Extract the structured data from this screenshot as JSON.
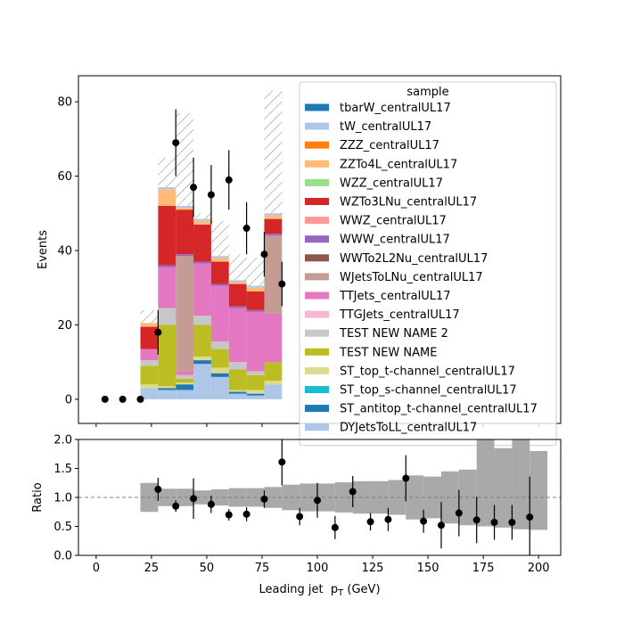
{
  "figure": {
    "colors": {
      "data_points": "#000000",
      "unc_hatch": "#808080",
      "ratio_band": "#a9a9a9",
      "ratio_ref_line": "#808080"
    }
  },
  "chart_data": [
    {
      "type": "bar",
      "stacked": true,
      "xlabel": "Leading jet  p_T (GeV)",
      "ylabel": "Events",
      "xlim": [
        -8,
        210
      ],
      "ylim": [
        -6.5,
        87
      ],
      "yticks": [
        0,
        20,
        40,
        60,
        80
      ],
      "bin_edges": [
        20,
        28,
        36,
        44,
        52,
        60,
        68,
        76,
        84,
        92,
        100,
        108,
        116,
        124,
        132,
        140,
        148,
        156,
        164,
        172,
        180,
        188,
        196,
        204
      ],
      "legend": {
        "title": "sample",
        "placement": "top-right"
      },
      "series": [
        {
          "name": "DYJetsToLL_centralUL17",
          "color": "#aec7e8",
          "values": [
            3.0,
            2.5,
            2.5,
            9.5,
            6.0,
            1.5,
            1.0,
            4.0,
            0,
            0,
            0,
            0,
            0,
            0,
            0,
            0,
            0,
            0,
            0,
            0,
            0,
            0,
            0
          ]
        },
        {
          "name": "ST_antitop_t-channel_centralUL17",
          "color": "#1f77b4",
          "values": [
            0,
            0.5,
            1.5,
            1.0,
            1.0,
            0.5,
            0.5,
            0,
            0,
            0,
            0,
            0,
            0,
            0,
            0,
            0,
            0,
            0,
            0,
            0,
            0,
            0,
            0
          ]
        },
        {
          "name": "ST_top_s-channel_centralUL17",
          "color": "#17becf",
          "values": [
            0,
            0,
            0,
            0,
            0,
            0,
            0,
            0,
            0,
            0,
            0,
            0,
            0,
            0,
            0,
            0,
            0,
            0,
            0,
            0,
            0,
            0,
            0
          ]
        },
        {
          "name": "ST_top_t-channel_centralUL17",
          "color": "#dbdb8d",
          "values": [
            1.0,
            0.5,
            0.5,
            1.0,
            1.5,
            0.5,
            1.0,
            1.0,
            0,
            0,
            0,
            0,
            0,
            0,
            0,
            0,
            0,
            0,
            0,
            0,
            0,
            0,
            0
          ]
        },
        {
          "name": "TEST NEW NAME",
          "color": "#bcbd22",
          "values": [
            5.0,
            16.5,
            1.0,
            8.5,
            5.0,
            5.5,
            4.0,
            5.0,
            0,
            0,
            0,
            0,
            0,
            0,
            0,
            0,
            0,
            0,
            0,
            0,
            0,
            0,
            0
          ]
        },
        {
          "name": "TEST NEW NAME 2",
          "color": "#c7c7c7",
          "values": [
            1.5,
            4.5,
            1.0,
            2.5,
            2.0,
            2.0,
            1.0,
            0,
            0,
            0,
            0,
            0,
            0,
            0,
            0,
            0,
            0,
            0,
            0,
            0,
            0,
            0,
            0
          ]
        },
        {
          "name": "TTGJets_centralUL17",
          "color": "#f7b6d2",
          "values": [
            0,
            0,
            0,
            0,
            0,
            0,
            0,
            0,
            0,
            0,
            0,
            0,
            0,
            0,
            0,
            0,
            0,
            0,
            0,
            0,
            0,
            0,
            0
          ]
        },
        {
          "name": "TTJets_centralUL17",
          "color": "#e377c2",
          "values": [
            3.0,
            11.0,
            1.0,
            14.0,
            15.0,
            14.5,
            16.0,
            13.0,
            0,
            0,
            0,
            0,
            0,
            0,
            0,
            0,
            0,
            0,
            0,
            0,
            0,
            0,
            0
          ]
        },
        {
          "name": "WJetsToLNu_centralUL17",
          "color": "#c49c94",
          "values": [
            0,
            0,
            31.0,
            0,
            0,
            0,
            0,
            21.0,
            0,
            0,
            0,
            0,
            0,
            0,
            0,
            0,
            0,
            0,
            0,
            0,
            0,
            0,
            0
          ]
        },
        {
          "name": "WWTo2L2Nu_centralUL17",
          "color": "#8c564b",
          "values": [
            0,
            0,
            0,
            0,
            0,
            0,
            0,
            0,
            0,
            0,
            0,
            0,
            0,
            0,
            0,
            0,
            0,
            0,
            0,
            0,
            0,
            0,
            0
          ]
        },
        {
          "name": "WWW_centralUL17",
          "color": "#9467bd",
          "values": [
            0,
            0.5,
            0.5,
            0.5,
            0.5,
            0.5,
            0.5,
            0.5,
            0,
            0,
            0,
            0,
            0,
            0,
            0,
            0,
            0,
            0,
            0,
            0,
            0,
            0,
            0
          ]
        },
        {
          "name": "WWZ_centralUL17",
          "color": "#ff9896",
          "values": [
            0,
            0,
            0,
            0,
            0,
            0,
            0,
            0,
            0,
            0,
            0,
            0,
            0,
            0,
            0,
            0,
            0,
            0,
            0,
            0,
            0,
            0,
            0
          ]
        },
        {
          "name": "WZTo3LNu_centralUL17",
          "color": "#d62728",
          "values": [
            6.0,
            16.0,
            12.0,
            10.0,
            6.0,
            6.0,
            5.0,
            4.0,
            0,
            0,
            0,
            0,
            0,
            0,
            0,
            0,
            0,
            0,
            0,
            0,
            0,
            0,
            0
          ]
        },
        {
          "name": "WZZ_centralUL17",
          "color": "#98df8a",
          "values": [
            0,
            0,
            0,
            0,
            0,
            0,
            0,
            0,
            0,
            0,
            0,
            0,
            0,
            0,
            0,
            0,
            0,
            0,
            0,
            0,
            0,
            0,
            0
          ]
        },
        {
          "name": "ZZTo4L_centralUL17",
          "color": "#ffbb78",
          "values": [
            1.0,
            4.5,
            0.5,
            1.0,
            1.0,
            0.5,
            1.0,
            1.0,
            0,
            0,
            0,
            0,
            0,
            0,
            0,
            0,
            0,
            0,
            0,
            0,
            0,
            0,
            0
          ]
        },
        {
          "name": "ZZZ_centralUL17",
          "color": "#ff7f0e",
          "values": [
            0,
            0,
            0,
            0,
            0,
            0,
            0,
            0,
            0,
            0,
            0,
            0,
            0,
            0,
            0,
            0,
            0,
            0,
            0,
            0,
            0,
            0,
            0
          ]
        },
        {
          "name": "tW_centralUL17",
          "color": "#aec7e8",
          "values": [
            0,
            0.5,
            0.5,
            0.5,
            0.5,
            0.5,
            0.5,
            0.5,
            0,
            0,
            0,
            0,
            0,
            0,
            0,
            0,
            0,
            0,
            0,
            0,
            0,
            0,
            0
          ]
        },
        {
          "name": "tbarW_centralUL17",
          "color": "#1f77b4",
          "values": [
            0,
            0,
            0,
            0,
            0,
            0,
            0,
            0,
            0,
            0,
            0,
            0,
            0,
            0,
            0,
            0,
            0,
            0,
            0,
            0,
            0,
            0,
            0
          ]
        }
      ],
      "uncertainty_band": {
        "hatch": true,
        "low": [
          17,
          47,
          17,
          45,
          35,
          30,
          28,
          28
        ],
        "high": [
          24,
          65,
          77,
          50,
          48,
          39,
          38,
          83
        ]
      },
      "data_points": {
        "x": [
          4,
          12,
          20,
          28,
          36,
          44,
          52,
          60,
          68,
          76,
          84
        ],
        "y": [
          0,
          0,
          0,
          18,
          69,
          57,
          55,
          59,
          46,
          39,
          31
        ],
        "yerr": [
          0,
          0,
          0,
          6,
          9,
          8,
          8,
          8,
          7,
          6,
          6
        ]
      }
    },
    {
      "type": "scatter",
      "xlabel": "Leading jet  p_T (GeV)",
      "ylabel": "Ratio",
      "xlim": [
        -8,
        210
      ],
      "ylim": [
        0.0,
        2.0
      ],
      "xticks": [
        0,
        25,
        50,
        75,
        100,
        125,
        150,
        175,
        200
      ],
      "yticks": [
        0.0,
        0.5,
        1.0,
        1.5,
        2.0
      ],
      "reference_line": 1.0,
      "band": {
        "bin_edges": [
          20,
          28,
          36,
          44,
          52,
          60,
          68,
          76,
          84,
          92,
          100,
          108,
          116,
          124,
          132,
          140,
          148,
          156,
          164,
          172,
          180,
          188,
          196,
          204
        ],
        "low": [
          0.75,
          0.85,
          0.85,
          0.88,
          0.86,
          0.84,
          0.84,
          0.82,
          0.78,
          0.76,
          0.76,
          0.74,
          0.72,
          0.72,
          0.7,
          0.62,
          0.64,
          0.55,
          0.52,
          0.5,
          0.48,
          0.45,
          0.44
        ],
        "high": [
          1.25,
          1.15,
          1.15,
          1.12,
          1.14,
          1.16,
          1.16,
          1.18,
          1.22,
          1.24,
          1.24,
          1.26,
          1.28,
          1.28,
          1.3,
          1.38,
          1.36,
          1.45,
          1.48,
          2.0,
          1.85,
          2.0,
          1.8
        ]
      },
      "points": {
        "x": [
          28,
          36,
          44,
          52,
          60,
          68,
          76,
          84,
          92,
          100,
          108,
          116,
          124,
          132,
          140,
          148,
          156,
          164,
          172,
          180,
          188,
          196
        ],
        "y": [
          1.14,
          0.85,
          0.98,
          0.88,
          0.7,
          0.71,
          0.97,
          1.61,
          0.67,
          0.95,
          0.48,
          1.1,
          0.58,
          0.62,
          1.33,
          0.59,
          0.52,
          0.73,
          0.61,
          0.57,
          0.57,
          0.66
        ],
        "yerr": [
          0.2,
          0.1,
          0.35,
          0.15,
          0.1,
          0.12,
          0.15,
          0.4,
          0.15,
          0.3,
          0.2,
          0.27,
          0.15,
          0.2,
          0.4,
          0.2,
          0.4,
          0.4,
          0.4,
          0.3,
          0.3,
          0.7
        ]
      }
    }
  ]
}
